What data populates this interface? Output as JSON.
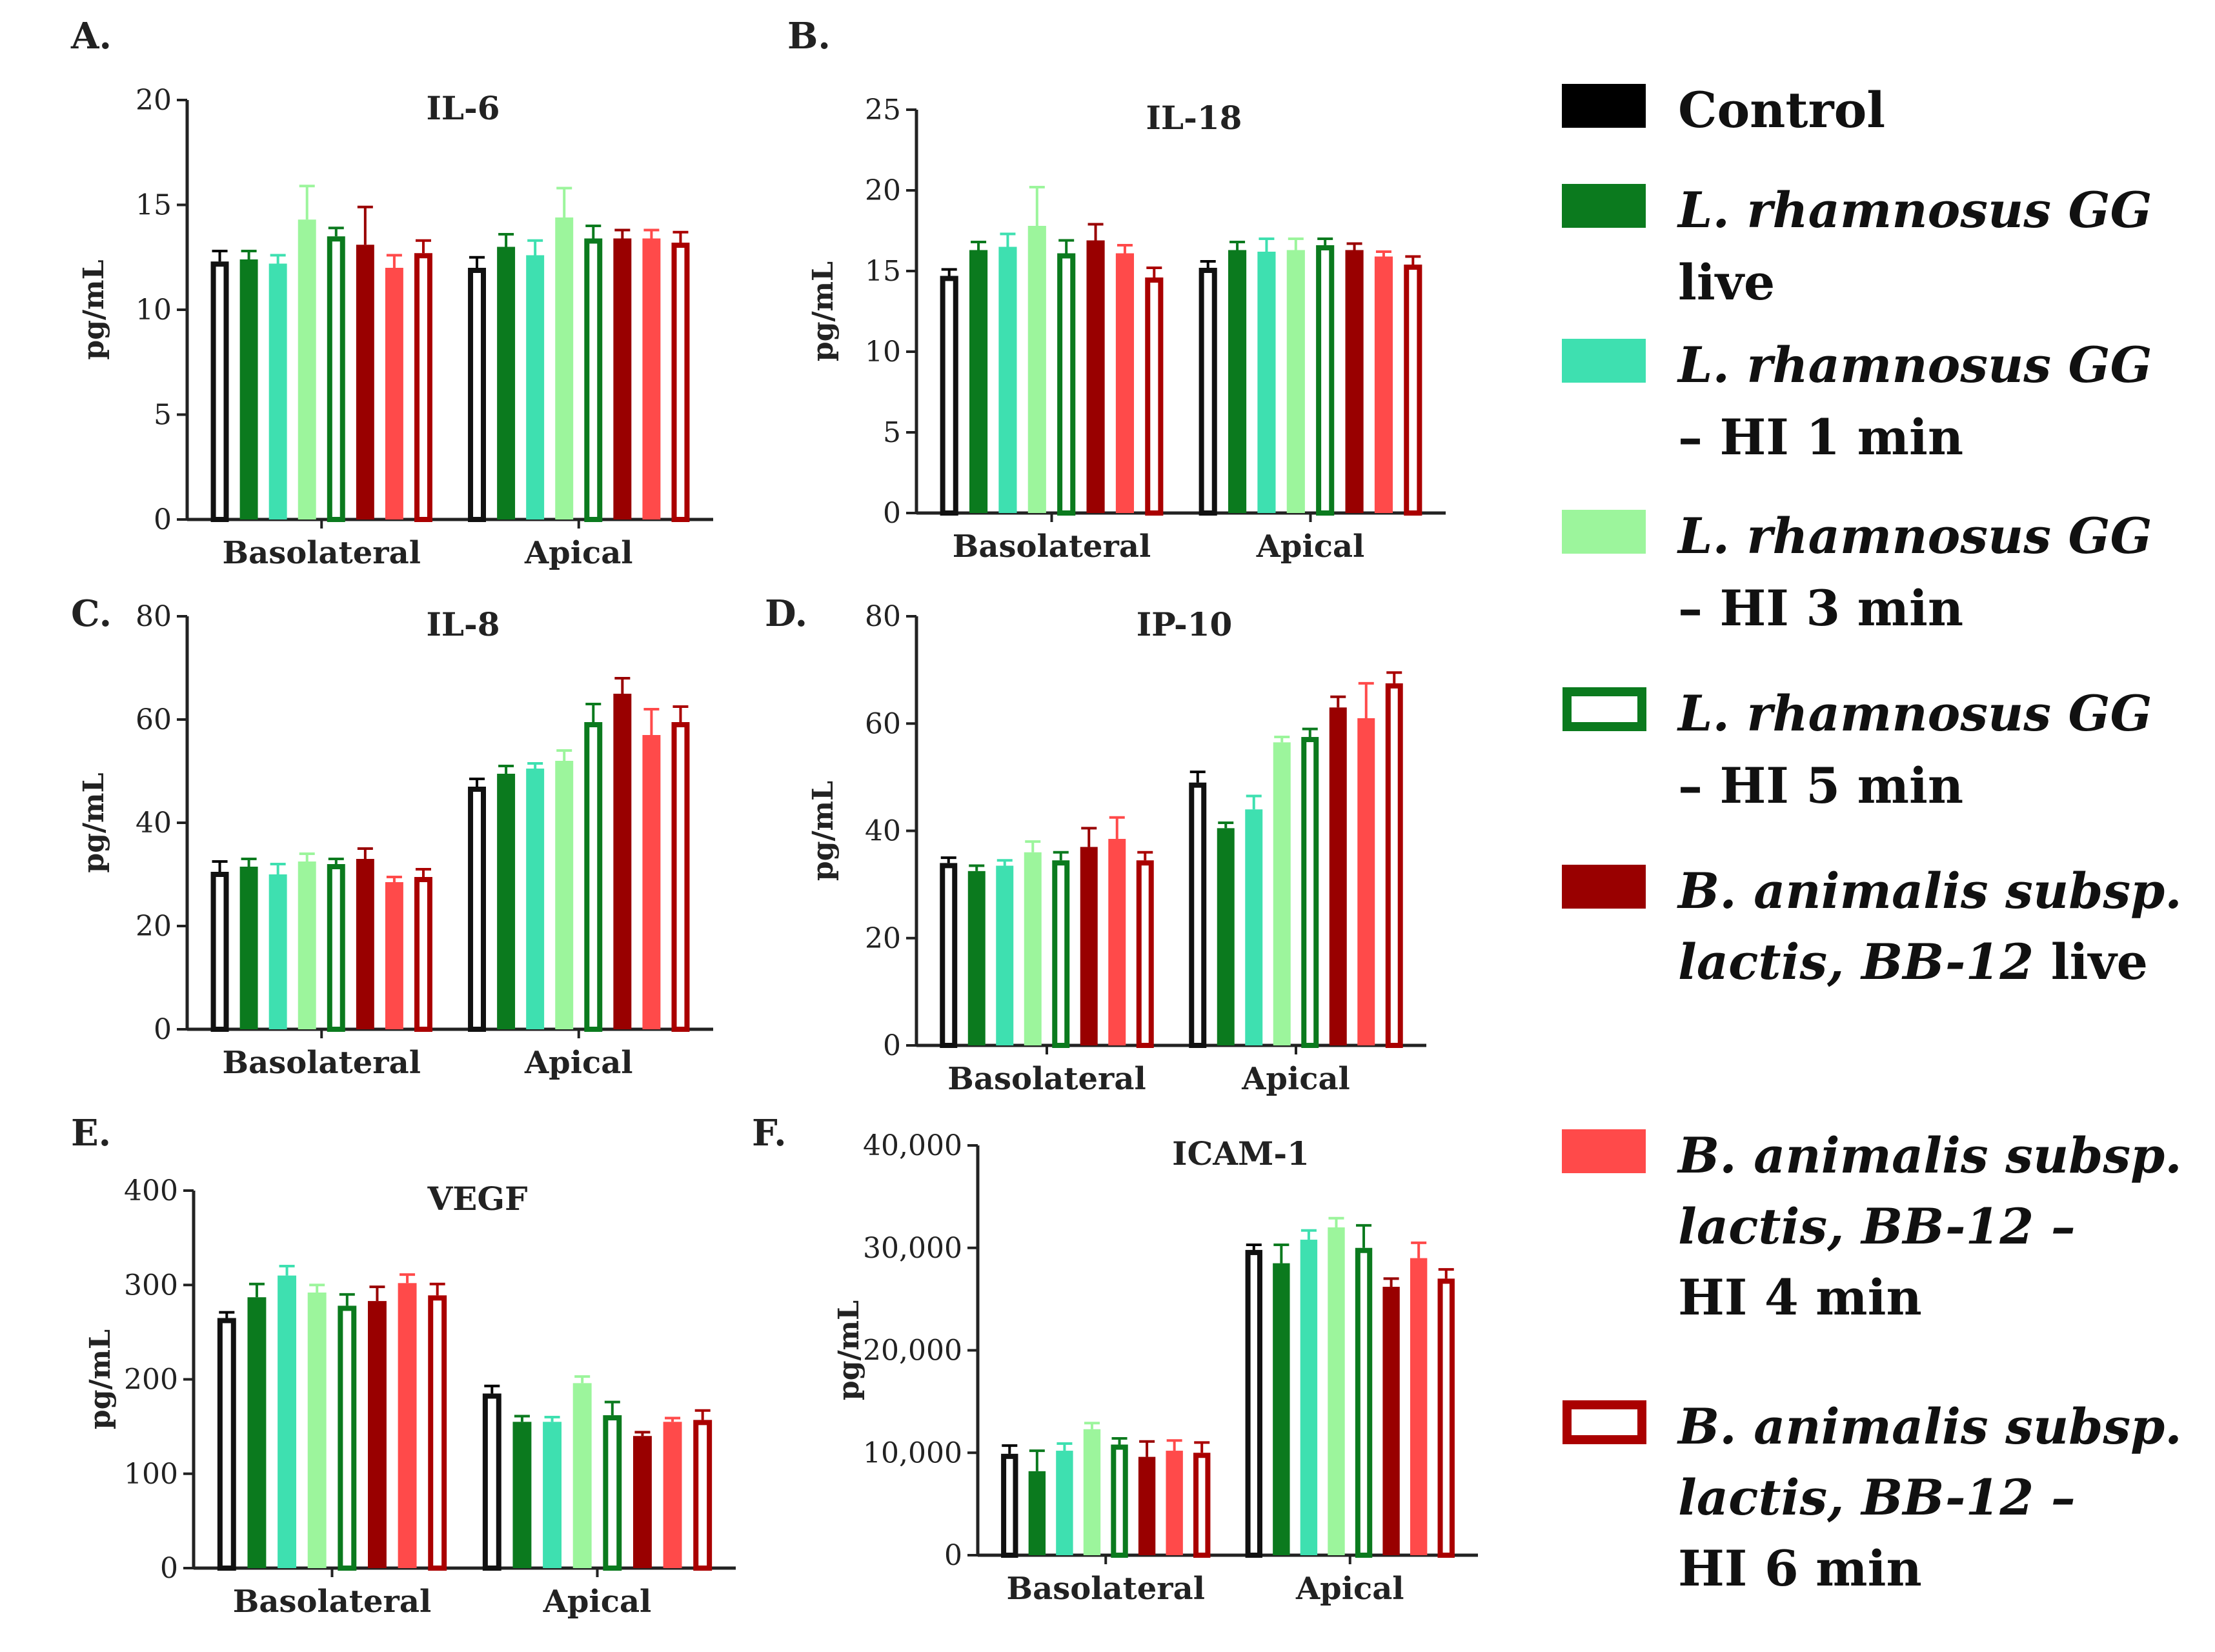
{
  "legend": {
    "items": [
      {
        "key": "control",
        "fill": "#000000",
        "stroke": "#000000",
        "hollow": false,
        "lines": [
          [
            {
              "t": "Control",
              "i": false
            }
          ]
        ]
      },
      {
        "key": "lgg_live",
        "fill": "#0b7a1e",
        "stroke": "#0b7a1e",
        "hollow": false,
        "lines": [
          [
            {
              "t": "L. rhamnosus GG",
              "i": true
            }
          ],
          [
            {
              "t": "live",
              "i": false
            }
          ]
        ]
      },
      {
        "key": "lgg_hi1",
        "fill": "#3ee0b0",
        "stroke": "#3ee0b0",
        "hollow": false,
        "lines": [
          [
            {
              "t": "L. rhamnosus GG",
              "i": true
            }
          ],
          [
            {
              "t": "– HI 1 min",
              "i": false
            }
          ]
        ]
      },
      {
        "key": "lgg_hi3",
        "fill": "#9cf59c",
        "stroke": "#9cf59c",
        "hollow": false,
        "lines": [
          [
            {
              "t": "L. rhamnosus GG",
              "i": true
            }
          ],
          [
            {
              "t": "– HI 3 min",
              "i": false
            }
          ]
        ]
      },
      {
        "key": "lgg_hi5",
        "fill": "#ffffff",
        "stroke": "#0b7a1e",
        "hollow": true,
        "lines": [
          [
            {
              "t": "L. rhamnosus GG",
              "i": true
            }
          ],
          [
            {
              "t": " – HI 5 min",
              "i": false
            }
          ]
        ]
      },
      {
        "key": "bb_live",
        "fill": "#990000",
        "stroke": "#990000",
        "hollow": false,
        "lines": [
          [
            {
              "t": "B. animalis subsp.",
              "i": true
            }
          ],
          [
            {
              "t": "lactis, BB-12",
              "i": true
            },
            {
              "t": " live",
              "i": false
            }
          ]
        ]
      },
      {
        "key": "bb_hi4",
        "fill": "#ff4a4a",
        "stroke": "#ff4a4a",
        "hollow": false,
        "lines": [
          [
            {
              "t": "B. animalis subsp.",
              "i": true
            }
          ],
          [
            {
              "t": "lactis, BB-12 –",
              "i": true
            }
          ],
          [
            {
              "t": "HI 4 min",
              "i": false
            }
          ]
        ]
      },
      {
        "key": "bb_hi6",
        "fill": "#ffffff",
        "stroke": "#aa0000",
        "hollow": true,
        "lines": [
          [
            {
              "t": "B. animalis subsp.",
              "i": true
            }
          ],
          [
            {
              "t": "lactis, BB-12 –",
              "i": true
            }
          ],
          [
            {
              "t": "HI 6 min",
              "i": false
            }
          ]
        ]
      }
    ]
  },
  "chart_data": [
    {
      "type": "bar",
      "panel": "A.",
      "title": "IL-6",
      "ylabel": "pg/mL",
      "ylim": [
        0,
        20
      ],
      "yticks": [
        0,
        5,
        10,
        15,
        20
      ],
      "categories": [
        "Basolateral",
        "Apical"
      ],
      "series": [
        {
          "name": "Control",
          "values": [
            12.3,
            12.0
          ],
          "errors": [
            0.5,
            0.5
          ]
        },
        {
          "name": "L. rhamnosus GG live",
          "values": [
            12.4,
            13.0
          ],
          "errors": [
            0.4,
            0.6
          ]
        },
        {
          "name": "L. rhamnosus GG – HI 1 min",
          "values": [
            12.2,
            12.6
          ],
          "errors": [
            0.4,
            0.7
          ]
        },
        {
          "name": "L. rhamnosus GG – HI 3 min",
          "values": [
            14.3,
            14.4
          ],
          "errors": [
            1.6,
            1.4
          ]
        },
        {
          "name": "L. rhamnosus GG – HI 5 min",
          "values": [
            13.5,
            13.4
          ],
          "errors": [
            0.4,
            0.6
          ]
        },
        {
          "name": "B. animalis subsp. lactis, BB-12 live",
          "values": [
            13.1,
            13.4
          ],
          "errors": [
            1.8,
            0.4
          ]
        },
        {
          "name": "B. animalis subsp. lactis, BB-12 – HI 4 min",
          "values": [
            12.0,
            13.4
          ],
          "errors": [
            0.6,
            0.4
          ]
        },
        {
          "name": "B. animalis subsp. lactis, BB-12 – HI 6 min",
          "values": [
            12.7,
            13.2
          ],
          "errors": [
            0.6,
            0.5
          ]
        }
      ]
    },
    {
      "type": "bar",
      "panel": "B.",
      "title": "IL-18",
      "ylabel": "pg/mL",
      "ylim": [
        0,
        25
      ],
      "yticks": [
        0,
        5,
        10,
        15,
        20,
        25
      ],
      "categories": [
        "Basolateral",
        "Apical"
      ],
      "series": [
        {
          "name": "Control",
          "values": [
            14.7,
            15.2
          ],
          "errors": [
            0.4,
            0.4
          ]
        },
        {
          "name": "L. rhamnosus GG live",
          "values": [
            16.3,
            16.3
          ],
          "errors": [
            0.5,
            0.5
          ]
        },
        {
          "name": "L. rhamnosus GG – HI 1 min",
          "values": [
            16.5,
            16.2
          ],
          "errors": [
            0.8,
            0.8
          ]
        },
        {
          "name": "L. rhamnosus GG – HI 3 min",
          "values": [
            17.8,
            16.3
          ],
          "errors": [
            2.4,
            0.7
          ]
        },
        {
          "name": "L. rhamnosus GG – HI 5 min",
          "values": [
            16.1,
            16.6
          ],
          "errors": [
            0.8,
            0.4
          ]
        },
        {
          "name": "B. animalis subsp. lactis, BB-12 live",
          "values": [
            16.9,
            16.3
          ],
          "errors": [
            1.0,
            0.4
          ]
        },
        {
          "name": "B. animalis subsp. lactis, BB-12 – HI 4 min",
          "values": [
            16.1,
            15.9
          ],
          "errors": [
            0.5,
            0.3
          ]
        },
        {
          "name": "B. animalis subsp. lactis, BB-12 – HI 6 min",
          "values": [
            14.6,
            15.4
          ],
          "errors": [
            0.6,
            0.5
          ]
        }
      ]
    },
    {
      "type": "bar",
      "panel": "C.",
      "title": "IL-8",
      "ylabel": "pg/mL",
      "ylim": [
        0,
        80
      ],
      "yticks": [
        0,
        20,
        40,
        60,
        80
      ],
      "categories": [
        "Basolateral",
        "Apical"
      ],
      "series": [
        {
          "name": "Control",
          "values": [
            30.5,
            47.0
          ],
          "errors": [
            2.0,
            1.5
          ]
        },
        {
          "name": "L. rhamnosus GG live",
          "values": [
            31.5,
            49.5
          ],
          "errors": [
            1.5,
            1.5
          ]
        },
        {
          "name": "L. rhamnosus GG – HI 1 min",
          "values": [
            30.0,
            50.5
          ],
          "errors": [
            2.0,
            1.0
          ]
        },
        {
          "name": "L. rhamnosus GG – HI 3 min",
          "values": [
            32.5,
            52.0
          ],
          "errors": [
            1.5,
            2.0
          ]
        },
        {
          "name": "L. rhamnosus GG – HI 5 min",
          "values": [
            32.0,
            59.5
          ],
          "errors": [
            1.0,
            3.5
          ]
        },
        {
          "name": "B. animalis subsp. lactis, BB-12 live",
          "values": [
            33.0,
            65.0
          ],
          "errors": [
            2.0,
            3.0
          ]
        },
        {
          "name": "B. animalis subsp. lactis, BB-12 – HI 4 min",
          "values": [
            28.5,
            57.0
          ],
          "errors": [
            1.0,
            5.0
          ]
        },
        {
          "name": "B. animalis subsp. lactis, BB-12 – HI 6 min",
          "values": [
            29.5,
            59.5
          ],
          "errors": [
            1.5,
            3.0
          ]
        }
      ]
    },
    {
      "type": "bar",
      "panel": "D.",
      "title": "IP-10",
      "ylabel": "pg/mL",
      "ylim": [
        0,
        80
      ],
      "yticks": [
        0,
        20,
        40,
        60,
        80
      ],
      "categories": [
        "Basolateral",
        "Apical"
      ],
      "series": [
        {
          "name": "Control",
          "values": [
            34.0,
            49.0
          ],
          "errors": [
            1.0,
            2.0
          ]
        },
        {
          "name": "L. rhamnosus GG live",
          "values": [
            32.5,
            40.5
          ],
          "errors": [
            1.0,
            1.0
          ]
        },
        {
          "name": "L. rhamnosus GG – HI 1 min",
          "values": [
            33.5,
            44.0
          ],
          "errors": [
            1.0,
            2.5
          ]
        },
        {
          "name": "L. rhamnosus GG – HI 3 min",
          "values": [
            36.0,
            56.5
          ],
          "errors": [
            2.0,
            1.0
          ]
        },
        {
          "name": "L. rhamnosus GG – HI 5 min",
          "values": [
            34.5,
            57.5
          ],
          "errors": [
            1.5,
            1.5
          ]
        },
        {
          "name": "B. animalis subsp. lactis, BB-12 live",
          "values": [
            37.0,
            63.0
          ],
          "errors": [
            3.5,
            2.0
          ]
        },
        {
          "name": "B. animalis subsp. lactis, BB-12 – HI 4 min",
          "values": [
            38.5,
            61.0
          ],
          "errors": [
            4.0,
            6.5
          ]
        },
        {
          "name": "B. animalis subsp. lactis, BB-12 – HI 6 min",
          "values": [
            34.5,
            67.5
          ],
          "errors": [
            1.5,
            2.0
          ]
        }
      ]
    },
    {
      "type": "bar",
      "panel": "E.",
      "title": "VEGF",
      "ylabel": "pg/mL",
      "ylim": [
        0,
        400
      ],
      "yticks": [
        0,
        100,
        200,
        300,
        400
      ],
      "categories": [
        "Basolateral",
        "Apical"
      ],
      "series": [
        {
          "name": "Control",
          "values": [
            265,
            185
          ],
          "errors": [
            6,
            8
          ]
        },
        {
          "name": "L. rhamnosus GG live",
          "values": [
            287,
            155
          ],
          "errors": [
            14,
            6
          ]
        },
        {
          "name": "L. rhamnosus GG – HI 1 min",
          "values": [
            310,
            155
          ],
          "errors": [
            10,
            5
          ]
        },
        {
          "name": "L. rhamnosus GG – HI 3 min",
          "values": [
            292,
            196
          ],
          "errors": [
            8,
            7
          ]
        },
        {
          "name": "L. rhamnosus GG – HI 5 min",
          "values": [
            278,
            162
          ],
          "errors": [
            12,
            14
          ]
        },
        {
          "name": "B. animalis subsp. lactis, BB-12 live",
          "values": [
            283,
            140
          ],
          "errors": [
            15,
            4
          ]
        },
        {
          "name": "B. animalis subsp. lactis, BB-12 – HI 4 min",
          "values": [
            302,
            155
          ],
          "errors": [
            9,
            4
          ]
        },
        {
          "name": "B. animalis subsp. lactis, BB-12 – HI 6 min",
          "values": [
            289,
            157
          ],
          "errors": [
            12,
            10
          ]
        }
      ]
    },
    {
      "type": "bar",
      "panel": "F.",
      "title": "ICAM-1",
      "ylabel": "pg/mL",
      "ylim": [
        0,
        40000
      ],
      "yticks": [
        0,
        10000,
        20000,
        30000,
        40000
      ],
      "categories": [
        "Basolateral",
        "Apical"
      ],
      "series": [
        {
          "name": "Control",
          "values": [
            9900,
            29800
          ],
          "errors": [
            800,
            500
          ]
        },
        {
          "name": "L. rhamnosus GG live",
          "values": [
            8200,
            28500
          ],
          "errors": [
            2000,
            1800
          ]
        },
        {
          "name": "L. rhamnosus GG – HI 1 min",
          "values": [
            10200,
            30800
          ],
          "errors": [
            700,
            900
          ]
        },
        {
          "name": "L. rhamnosus GG – HI 3 min",
          "values": [
            12300,
            32000
          ],
          "errors": [
            600,
            900
          ]
        },
        {
          "name": "L. rhamnosus GG – HI 5 min",
          "values": [
            10800,
            30000
          ],
          "errors": [
            600,
            2200
          ]
        },
        {
          "name": "B. animalis subsp. lactis, BB-12 live",
          "values": [
            9600,
            26200
          ],
          "errors": [
            1500,
            800
          ]
        },
        {
          "name": "B. animalis subsp. lactis, BB-12 – HI 4 min",
          "values": [
            10200,
            29000
          ],
          "errors": [
            1000,
            1500
          ]
        },
        {
          "name": "B. animalis subsp. lactis, BB-12 – HI 6 min",
          "values": [
            10000,
            27000
          ],
          "errors": [
            1000,
            900
          ]
        }
      ]
    }
  ]
}
